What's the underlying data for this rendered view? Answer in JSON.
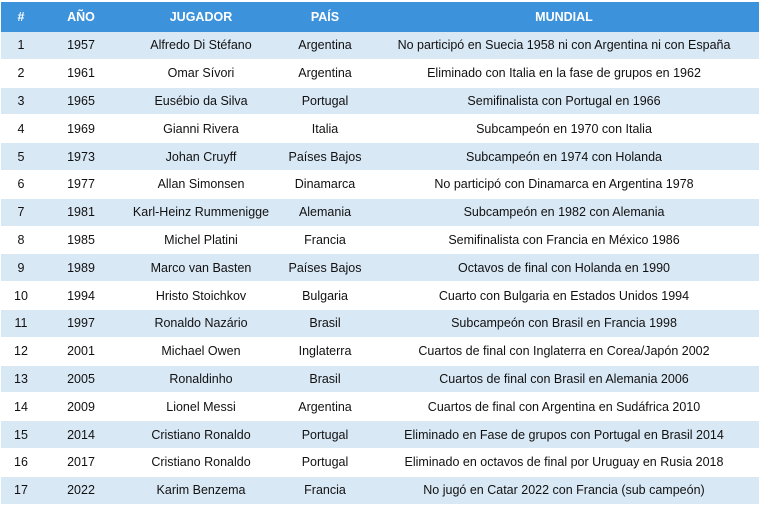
{
  "table": {
    "header": [
      "#",
      "AÑO",
      "JUGADOR",
      "PAÍS",
      "MUNDIAL"
    ],
    "rows": [
      [
        "1",
        "1957",
        "Alfredo Di Stéfano",
        "Argentina",
        "No participó en Suecia 1958 ni con Argentina ni con España"
      ],
      [
        "2",
        "1961",
        "Omar Sívori",
        "Argentina",
        "Eliminado con Italia en la fase de grupos en 1962"
      ],
      [
        "3",
        "1965",
        "Eusébio da Silva",
        "Portugal",
        "Semifinalista con Portugal en 1966"
      ],
      [
        "4",
        "1969",
        "Gianni Rivera",
        "Italia",
        "Subcampeón en 1970 con Italia"
      ],
      [
        "5",
        "1973",
        "Johan Cruyff",
        "Países Bajos",
        "Subcampeón en 1974 con Holanda"
      ],
      [
        "6",
        "1977",
        "Allan Simonsen",
        "Dinamarca",
        "No participó con Dinamarca en Argentina 1978"
      ],
      [
        "7",
        "1981",
        "Karl-Heinz Rummenigge",
        "Alemania",
        "Subcampeón en 1982 con Alemania"
      ],
      [
        "8",
        "1985",
        "Michel Platini",
        "Francia",
        "Semifinalista con Francia en México 1986"
      ],
      [
        "9",
        "1989",
        "Marco van Basten",
        "Países Bajos",
        "Octavos de final con Holanda en 1990"
      ],
      [
        "10",
        "1994",
        "Hristo Stoichkov",
        "Bulgaria",
        "Cuarto con Bulgaria en Estados Unidos 1994"
      ],
      [
        "11",
        "1997",
        "Ronaldo Nazário",
        "Brasil",
        "Subcampeón con Brasil en Francia 1998"
      ],
      [
        "12",
        "2001",
        "Michael Owen",
        "Inglaterra",
        "Cuartos de final con Inglaterra en Corea/Japón 2002"
      ],
      [
        "13",
        "2005",
        "Ronaldinho",
        "Brasil",
        "Cuartos de final con Brasil en Alemania 2006"
      ],
      [
        "14",
        "2009",
        "Lionel Messi",
        "Argentina",
        "Cuartos de final con Argentina en Sudáfrica 2010"
      ],
      [
        "15",
        "2014",
        "Cristiano Ronaldo",
        "Portugal",
        "Eliminado en Fase de grupos con Portugal en Brasil 2014"
      ],
      [
        "16",
        "2017",
        "Cristiano Ronaldo",
        "Portugal",
        "Eliminado en octavos de final por Uruguay en Rusia 2018"
      ],
      [
        "17",
        "2022",
        "Karim Benzema",
        "Francia",
        "No jugó en Catar 2022 con Francia (sub campeón)"
      ]
    ]
  }
}
